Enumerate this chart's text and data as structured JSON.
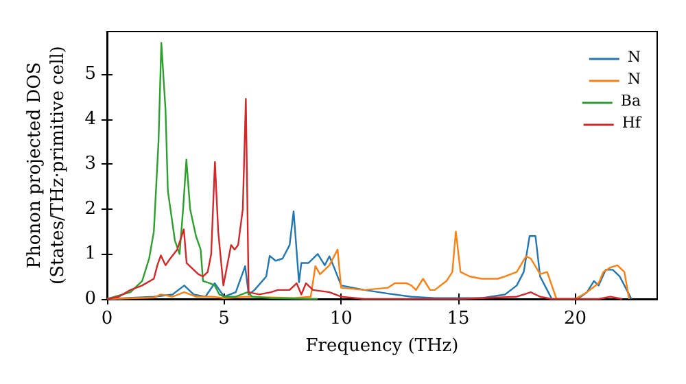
{
  "chart_data": {
    "type": "line",
    "xlabel": "Frequency (THz)",
    "ylabel": "Phonon projected DOS\n(States/THz·primitive cell)",
    "xlim": [
      0,
      23.5
    ],
    "xticks": [
      0,
      5,
      10,
      15,
      20
    ],
    "ylim": [
      0,
      5.95
    ],
    "yticks": [
      0,
      1,
      2,
      3,
      4,
      5
    ],
    "grid": false,
    "legend": "top right",
    "marker": "none",
    "line_style": "solid",
    "series": [
      {
        "name": "N",
        "color": "#1f77b4",
        "x": [
          0,
          2,
          2.8,
          3.3,
          3.7,
          4.2,
          4.6,
          5,
          5.5,
          5.9,
          6.05,
          6.3,
          6.8,
          6.95,
          7.2,
          7.5,
          7.8,
          7.97,
          8.2,
          8.3,
          8.6,
          9.0,
          9.3,
          9.5,
          9.7,
          10,
          10.5,
          11,
          12,
          13,
          14,
          16,
          17,
          17.5,
          17.8,
          18.05,
          18.3,
          18.5,
          18.8,
          19.0,
          20.1,
          20.5,
          20.8,
          21.0,
          21.3,
          21.6,
          21.9,
          22.2,
          22.4
        ],
        "values": [
          0,
          0.05,
          0.1,
          0.3,
          0.1,
          0.05,
          0.35,
          0.05,
          0.15,
          0.73,
          0.1,
          0.2,
          0.5,
          0.96,
          0.85,
          0.9,
          1.2,
          1.95,
          0.37,
          0.8,
          0.8,
          1.0,
          0.75,
          0.95,
          0.7,
          0.3,
          0.25,
          0.2,
          0.12,
          0.05,
          0.02,
          0.02,
          0.1,
          0.3,
          0.6,
          1.4,
          1.4,
          0.5,
          0.2,
          0,
          0,
          0.15,
          0.4,
          0.3,
          0.65,
          0.65,
          0.5,
          0.2,
          0
        ]
      },
      {
        "name": "N",
        "color": "#ff7f0e",
        "x": [
          0,
          2,
          2.3,
          2.8,
          3.3,
          3.8,
          4.5,
          5,
          6,
          8,
          8.7,
          8.9,
          9.1,
          9.5,
          9.85,
          10.0,
          11,
          12,
          12.3,
          12.8,
          13.0,
          13.2,
          13.5,
          13.8,
          14,
          14.5,
          14.75,
          14.9,
          15.1,
          15.5,
          16,
          16.7,
          17,
          17.5,
          17.9,
          18.1,
          18.5,
          18.8,
          19.0,
          19.2,
          20.0,
          20.5,
          21,
          21.2,
          21.5,
          21.8,
          22.1,
          22.3
        ],
        "values": [
          0,
          0.03,
          0.1,
          0.05,
          0.15,
          0.05,
          0.05,
          0.02,
          0.05,
          0.02,
          0.05,
          0.73,
          0.55,
          0.75,
          1.1,
          0.25,
          0.2,
          0.25,
          0.35,
          0.35,
          0.3,
          0.2,
          0.45,
          0.2,
          0.2,
          0.4,
          0.6,
          1.5,
          0.6,
          0.5,
          0.45,
          0.45,
          0.5,
          0.6,
          0.95,
          0.9,
          0.55,
          0.6,
          0.3,
          0,
          0,
          0.15,
          0.35,
          0.6,
          0.7,
          0.75,
          0.6,
          0
        ]
      },
      {
        "name": "Ba",
        "color": "#2ca02c",
        "x": [
          0,
          1,
          1.5,
          1.8,
          2,
          2.2,
          2.32,
          2.5,
          2.6,
          2.9,
          3.1,
          3.25,
          3.39,
          3.55,
          3.8,
          4.0,
          4.1,
          4.4,
          4.6,
          4.8,
          5.0,
          5.5,
          6.0,
          6.2,
          7,
          9
        ],
        "values": [
          0,
          0.15,
          0.4,
          0.9,
          1.5,
          3.5,
          5.7,
          4.2,
          2.4,
          1.3,
          1.0,
          2.0,
          3.1,
          2.0,
          1.4,
          1.1,
          0.4,
          0.35,
          0.3,
          0.1,
          0.05,
          0.05,
          0.15,
          0.05,
          0.02,
          0
        ]
      },
      {
        "name": "Hf",
        "color": "#d62728",
        "x": [
          0,
          0.5,
          1,
          1.5,
          2,
          2.15,
          2.3,
          2.5,
          2.7,
          3.0,
          3.28,
          3.4,
          3.6,
          3.9,
          4.1,
          4.3,
          4.45,
          4.55,
          4.61,
          4.75,
          4.97,
          5.3,
          5.45,
          5.6,
          5.8,
          5.93,
          6.05,
          6.5,
          7,
          7.3,
          7.8,
          8.1,
          8.3,
          8.5,
          8.8,
          9.5,
          10,
          11,
          15,
          17.5,
          18.1,
          18.5,
          19,
          21,
          21.5,
          22
        ],
        "values": [
          0,
          0.05,
          0.2,
          0.3,
          0.45,
          0.75,
          0.97,
          0.75,
          0.9,
          1.1,
          1.55,
          0.8,
          0.7,
          0.55,
          0.5,
          0.6,
          1.0,
          2.3,
          3.05,
          1.5,
          0.3,
          1.2,
          1.1,
          1.2,
          2.0,
          4.45,
          0.15,
          0.1,
          0.15,
          0.2,
          0.2,
          0.35,
          0.1,
          0.35,
          0.2,
          0.15,
          0.05,
          0,
          0,
          0.05,
          0.15,
          0.05,
          0,
          0,
          0.05,
          0
        ]
      }
    ]
  }
}
